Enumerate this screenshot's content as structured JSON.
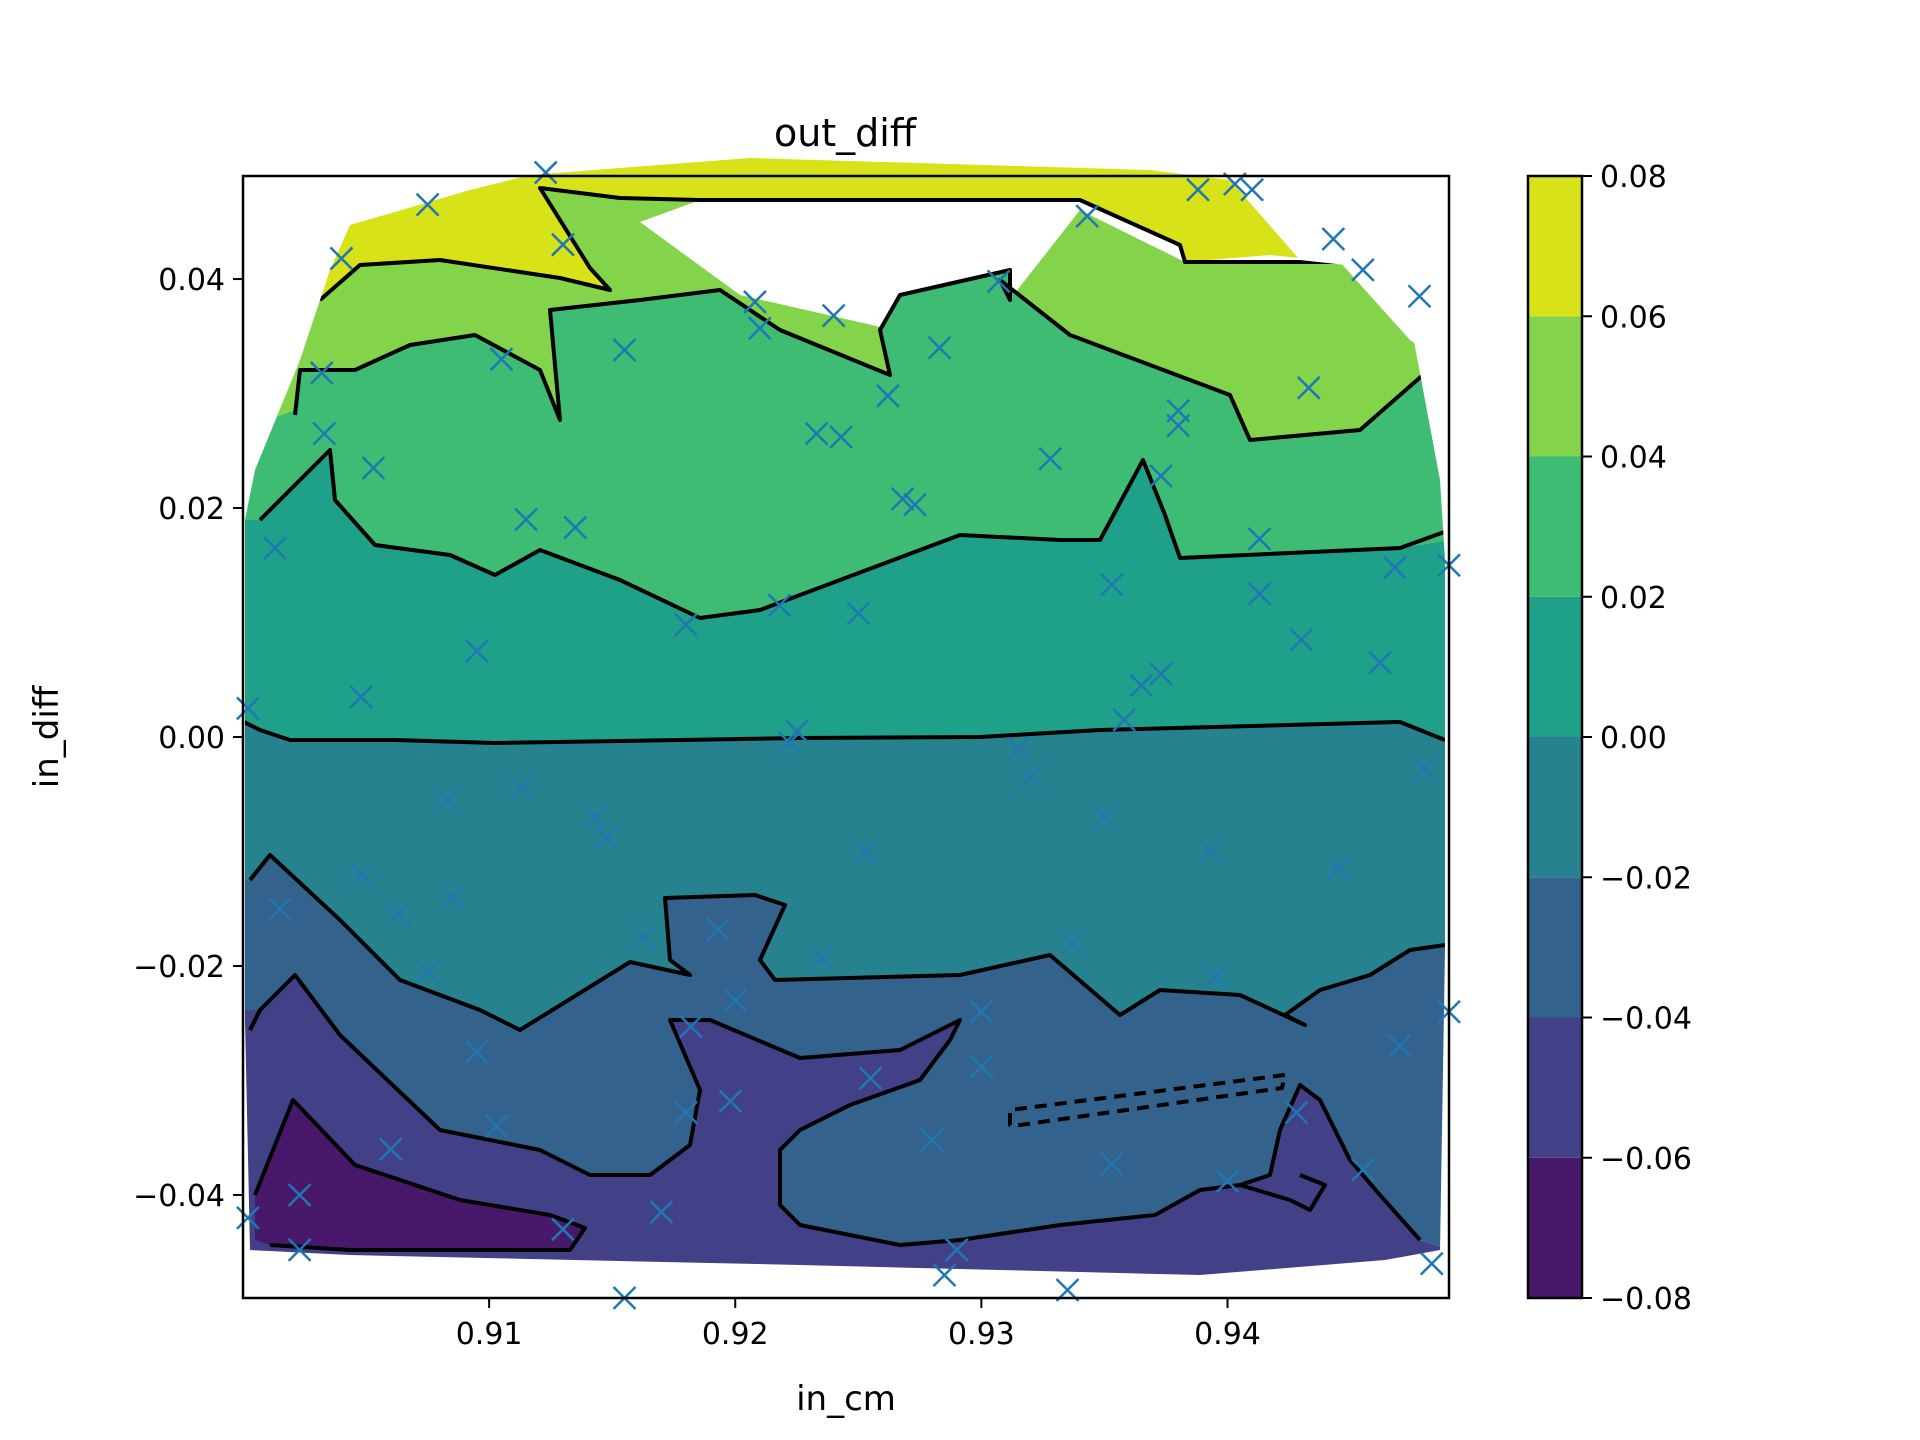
{
  "chart_data": {
    "type": "contour",
    "title": "out_diff",
    "xlabel": "in_cm",
    "ylabel": "in_diff",
    "xlim": [
      0.9,
      0.949
    ],
    "ylim": [
      -0.049,
      0.049
    ],
    "xticks": [
      {
        "value": 0.91,
        "label": "0.91"
      },
      {
        "value": 0.92,
        "label": "0.92"
      },
      {
        "value": 0.93,
        "label": "0.93"
      },
      {
        "value": 0.94,
        "label": "0.94"
      }
    ],
    "yticks": [
      {
        "value": 0.04,
        "label": "0.04"
      },
      {
        "value": 0.02,
        "label": "0.02"
      },
      {
        "value": 0.0,
        "label": "0.00"
      },
      {
        "value": -0.02,
        "label": "−0.02"
      },
      {
        "value": -0.04,
        "label": "−0.04"
      }
    ],
    "colorbar": {
      "levels": [
        -0.08,
        -0.06,
        -0.04,
        -0.02,
        0.0,
        0.02,
        0.04,
        0.06,
        0.08
      ],
      "tick_labels": [
        "−0.08",
        "−0.06",
        "−0.04",
        "−0.02",
        "0.00",
        "0.02",
        "0.04",
        "0.06",
        "0.08"
      ],
      "colors": [
        "#48186a",
        "#424086",
        "#33638d",
        "#26828e",
        "#1fa088",
        "#3fbc73",
        "#84d44b",
        "#d8e219"
      ]
    },
    "contour_lines": [
      {
        "level": 0.0,
        "points": [
          [
            0.9,
            0.0005
          ],
          [
            0.9005,
            0.0
          ],
          [
            0.905,
            0.0
          ],
          [
            0.91,
            0.0
          ],
          [
            0.915,
            0.0
          ],
          [
            0.92,
            0.0
          ],
          [
            0.925,
            0.0002
          ],
          [
            0.93,
            0.0001
          ],
          [
            0.935,
            0.0
          ],
          [
            0.94,
            0.0003
          ],
          [
            0.945,
            0.0012
          ],
          [
            0.949,
            0.0
          ]
        ]
      },
      {
        "level": 0.02,
        "points": [
          [
            0.9008,
            0.0195
          ],
          [
            0.9033,
            0.0262
          ],
          [
            0.9035,
            0.0205
          ],
          [
            0.9053,
            0.0173
          ],
          [
            0.9102,
            0.0142
          ],
          [
            0.9152,
            0.0168
          ],
          [
            0.92,
            0.0118
          ],
          [
            0.9223,
            0.0108
          ],
          [
            0.925,
            0.0134
          ],
          [
            0.93,
            0.0178
          ],
          [
            0.9345,
            0.0175
          ],
          [
            0.9365,
            0.0245
          ],
          [
            0.9385,
            0.0155
          ],
          [
            0.9425,
            0.0155
          ],
          [
            0.948,
            0.0168
          ],
          [
            0.949,
            0.0182
          ]
        ]
      },
      {
        "level": 0.04,
        "points": [
          [
            0.9023,
            0.0275
          ],
          [
            0.9033,
            0.031
          ],
          [
            0.9075,
            0.033
          ],
          [
            0.9098,
            0.0355
          ],
          [
            0.9122,
            0.0355
          ],
          [
            0.913,
            0.0335
          ],
          [
            0.9138,
            0.0275
          ],
          [
            0.9185,
            0.0298
          ],
          [
            0.9208,
            0.0338
          ],
          [
            0.9233,
            0.0305
          ],
          [
            0.9275,
            0.0265
          ]
        ]
      },
      {
        "level": -0.02,
        "points": [
          [
            0.9005,
            -0.0122
          ],
          [
            0.902,
            -0.01
          ],
          [
            0.9055,
            -0.0135
          ],
          [
            0.9085,
            -0.0185
          ],
          [
            0.9105,
            -0.026
          ],
          [
            0.916,
            -0.0185
          ],
          [
            0.9185,
            -0.016
          ],
          [
            0.9208,
            -0.0195
          ],
          [
            0.925,
            -0.02
          ],
          [
            0.93,
            -0.019
          ],
          [
            0.9338,
            -0.0185
          ],
          [
            0.9365,
            -0.02
          ],
          [
            0.94,
            -0.02
          ],
          [
            0.945,
            -0.0235
          ],
          [
            0.948,
            -0.0185
          ],
          [
            0.949,
            -0.018
          ]
        ]
      },
      {
        "level": -0.04,
        "points": [
          [
            0.9005,
            -0.026
          ],
          [
            0.9022,
            -0.021
          ],
          [
            0.906,
            -0.027
          ],
          [
            0.91,
            -0.032
          ],
          [
            0.915,
            -0.039
          ],
          [
            0.92,
            -0.039
          ],
          [
            0.924,
            -0.0345
          ],
          [
            0.9275,
            -0.029
          ],
          [
            0.931,
            -0.024
          ],
          [
            0.934,
            -0.036
          ],
          [
            0.939,
            -0.04
          ],
          [
            0.942,
            -0.038
          ],
          [
            0.944,
            -0.036
          ],
          [
            0.948,
            -0.043
          ],
          [
            0.948,
            -0.043
          ]
        ]
      },
      {
        "level": -0.06,
        "points": [
          [
            0.901,
            -0.04
          ],
          [
            0.9023,
            -0.0315
          ],
          [
            0.905,
            -0.038
          ],
          [
            0.912,
            -0.042
          ],
          [
            0.914,
            -0.043
          ],
          [
            0.913,
            -0.045
          ],
          [
            0.905,
            -0.0455
          ],
          [
            0.9015,
            -0.045
          ]
        ]
      }
    ],
    "scatter": {
      "marker": "x",
      "color": "#1f77b4",
      "points": [
        [
          0.9075,
          0.0465
        ],
        [
          0.9123,
          0.0493
        ],
        [
          0.904,
          0.0418
        ],
        [
          0.913,
          0.043
        ],
        [
          0.9032,
          0.0318
        ],
        [
          0.9105,
          0.033
        ],
        [
          0.9155,
          0.0338
        ],
        [
          0.9033,
          0.0265
        ],
        [
          0.9053,
          0.0235
        ],
        [
          0.9013,
          0.0165
        ],
        [
          0.9115,
          0.019
        ],
        [
          0.9135,
          0.0183
        ],
        [
          0.9095,
          0.0075
        ],
        [
          0.9048,
          0.0035
        ],
        [
          0.9002,
          0.0025
        ],
        [
          0.9208,
          0.038
        ],
        [
          0.921,
          0.0357
        ],
        [
          0.924,
          0.0368
        ],
        [
          0.9262,
          0.0298
        ],
        [
          0.9243,
          0.0262
        ],
        [
          0.9233,
          0.0265
        ],
        [
          0.9268,
          0.0208
        ],
        [
          0.9273,
          0.0203
        ],
        [
          0.9283,
          0.034
        ],
        [
          0.9307,
          0.0398
        ],
        [
          0.9343,
          0.0455
        ],
        [
          0.9388,
          0.0478
        ],
        [
          0.9403,
          0.0483
        ],
        [
          0.941,
          0.0478
        ],
        [
          0.9443,
          0.0435
        ],
        [
          0.9455,
          0.0408
        ],
        [
          0.9478,
          0.0385
        ],
        [
          0.9433,
          0.0305
        ],
        [
          0.938,
          0.0285
        ],
        [
          0.938,
          0.0272
        ],
        [
          0.9373,
          0.0228
        ],
        [
          0.9328,
          0.0243
        ],
        [
          0.9413,
          0.0173
        ],
        [
          0.9413,
          0.0125
        ],
        [
          0.943,
          0.0085
        ],
        [
          0.9468,
          0.0148
        ],
        [
          0.949,
          0.015
        ],
        [
          0.9462,
          0.0065
        ],
        [
          0.9353,
          0.0133
        ],
        [
          0.918,
          0.0098
        ],
        [
          0.9218,
          0.0115
        ],
        [
          0.925,
          0.0108
        ],
        [
          0.9365,
          0.0045
        ],
        [
          0.9373,
          0.0055
        ],
        [
          0.9358,
          0.0015
        ],
        [
          0.9225,
          0.0005
        ],
        [
          0.9222,
          -0.0005
        ],
        [
          0.9315,
          -0.001
        ],
        [
          0.932,
          -0.0035
        ],
        [
          0.9083,
          -0.0055
        ],
        [
          0.9113,
          -0.0045
        ],
        [
          0.9143,
          -0.007
        ],
        [
          0.9148,
          -0.0088
        ],
        [
          0.935,
          -0.007
        ],
        [
          0.948,
          -0.0028
        ],
        [
          0.9253,
          -0.01
        ],
        [
          0.9393,
          -0.01
        ],
        [
          0.9445,
          -0.0115
        ],
        [
          0.9048,
          -0.012
        ],
        [
          0.9085,
          -0.014
        ],
        [
          0.9015,
          -0.015
        ],
        [
          0.9063,
          -0.0155
        ],
        [
          0.9163,
          -0.0175
        ],
        [
          0.9193,
          -0.0168
        ],
        [
          0.9235,
          -0.0193
        ],
        [
          0.9337,
          -0.018
        ],
        [
          0.9075,
          -0.0205
        ],
        [
          0.9395,
          -0.021
        ],
        [
          0.92,
          -0.023
        ],
        [
          0.949,
          -0.024
        ],
        [
          0.9182,
          -0.0253
        ],
        [
          0.93,
          -0.024
        ],
        [
          0.9095,
          -0.0275
        ],
        [
          0.947,
          -0.027
        ],
        [
          0.93,
          -0.0288
        ],
        [
          0.9255,
          -0.0298
        ],
        [
          0.918,
          -0.0328
        ],
        [
          0.9198,
          -0.0318
        ],
        [
          0.9103,
          -0.034
        ],
        [
          0.906,
          -0.036
        ],
        [
          0.928,
          -0.0352
        ],
        [
          0.9353,
          -0.0373
        ],
        [
          0.9428,
          -0.0328
        ],
        [
          0.9455,
          -0.0378
        ],
        [
          0.94,
          -0.0388
        ],
        [
          0.9023,
          -0.04
        ],
        [
          0.9002,
          -0.042
        ],
        [
          0.9023,
          -0.0448
        ],
        [
          0.913,
          -0.043
        ],
        [
          0.917,
          -0.0415
        ],
        [
          0.929,
          -0.0448
        ],
        [
          0.9285,
          -0.047
        ],
        [
          0.9155,
          -0.049
        ],
        [
          0.9335,
          -0.0483
        ],
        [
          0.9483,
          -0.046
        ]
      ]
    }
  }
}
